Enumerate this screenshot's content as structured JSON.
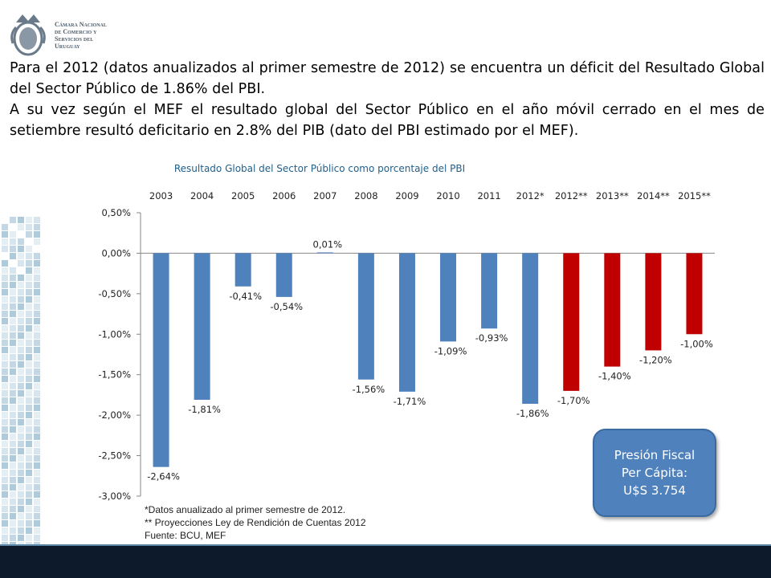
{
  "logo": {
    "lines": [
      "Cámara Nacional",
      "de Comercio y",
      "Servicios del",
      "Uruguay"
    ]
  },
  "intro": {
    "paragraph1": "Para el 2012 (datos anualizados al primer semestre de 2012) se encuentra un déficit del Resultado Global del Sector Público de 1.86% del PBI.",
    "paragraph2": "A su vez según el MEF el resultado global del Sector Público en el año móvil cerrado en el mes de setiembre resultó deficitario en 2.8% del PIB (dato del PBI estimado por el MEF)."
  },
  "chart_data": {
    "type": "bar",
    "title": "Resultado Global del Sector Público como porcentaje del PBI",
    "categories": [
      "2003",
      "2004",
      "2005",
      "2006",
      "2007",
      "2008",
      "2009",
      "2010",
      "2011",
      "2012*",
      "2012**",
      "2013**",
      "2014**",
      "2015**"
    ],
    "values": [
      -2.64,
      -1.81,
      -0.41,
      -0.54,
      0.01,
      -1.56,
      -1.71,
      -1.09,
      -0.93,
      -1.86,
      -1.7,
      -1.4,
      -1.2,
      -1.0
    ],
    "data_labels": [
      "-2,64%",
      "-1,81%",
      "-0,41%",
      "-0,54%",
      "0,01%",
      "-1,56%",
      "-1,71%",
      "-1,09%",
      "-0,93%",
      "-1,86%",
      "-1,70%",
      "-1,40%",
      "-1,20%",
      "-1,00%"
    ],
    "projection": [
      false,
      false,
      false,
      false,
      false,
      false,
      false,
      false,
      false,
      false,
      true,
      true,
      true,
      true
    ],
    "ylim": [
      -3.0,
      0.5
    ],
    "yticks": [
      0.5,
      0.0,
      -0.5,
      -1.0,
      -1.5,
      -2.0,
      -2.5,
      -3.0
    ],
    "ytick_labels": [
      "0,50%",
      "0,00%",
      "-0,50%",
      "-1,00%",
      "-1,50%",
      "-2,00%",
      "-2,50%",
      "-3,00%"
    ],
    "category_axis_position": "top",
    "grid": false,
    "colors": {
      "actual": "#4f81bd",
      "projection": "#c00000",
      "title": "#1f5f8b"
    }
  },
  "notes": [
    "*Datos anualizado al primer semestre de 2012.",
    "** Proyecciones Ley de Rendición de Cuentas 2012",
    " Fuente: BCU, MEF"
  ],
  "callout": {
    "lines": [
      "Presión Fiscal",
      "Per Cápita:",
      "U$S 3.754"
    ]
  }
}
